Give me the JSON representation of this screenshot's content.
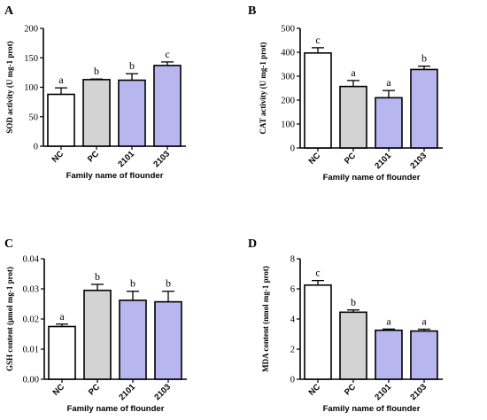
{
  "colors": {
    "NC": "#ffffff",
    "PC": "#d3d3d3",
    "2101": "#b8b6ee",
    "2103": "#b8b6ee",
    "axis": "#000000"
  },
  "chart_data": [
    {
      "panel": "A",
      "type": "bar",
      "categories": [
        "NC",
        "PC",
        "2101",
        "2103"
      ],
      "values": [
        88,
        113,
        112,
        137
      ],
      "errors": [
        11,
        1,
        11,
        6
      ],
      "sig_labels": [
        "a",
        "b",
        "b",
        "c"
      ],
      "ylabel": "SOD activity (U mg-1 prot)",
      "xlabel": "Family name of flounder",
      "ylim": [
        0,
        200
      ],
      "yticks": [
        "0",
        "50",
        "100",
        "150",
        "200"
      ]
    },
    {
      "panel": "B",
      "type": "bar",
      "categories": [
        "NC",
        "PC",
        "2101",
        "2103"
      ],
      "values": [
        397,
        257,
        210,
        328
      ],
      "errors": [
        22,
        25,
        30,
        14
      ],
      "sig_labels": [
        "c",
        "a",
        "a",
        "b"
      ],
      "ylabel": "CAT activity (U mg-1 prot)",
      "xlabel": "Family name of flounder",
      "ylim": [
        0,
        500
      ],
      "yticks": [
        "0",
        "100",
        "200",
        "300",
        "400",
        "500"
      ]
    },
    {
      "panel": "C",
      "type": "bar",
      "categories": [
        "NC",
        "PC",
        "2101",
        "2103"
      ],
      "values": [
        0.0175,
        0.0295,
        0.0262,
        0.0257
      ],
      "errors": [
        0.0008,
        0.002,
        0.003,
        0.0035
      ],
      "sig_labels": [
        "a",
        "b",
        "b",
        "b"
      ],
      "ylabel": "GSH content (μmol mg-1 prot)",
      "xlabel": "Family name of flounder",
      "ylim": [
        0,
        0.04
      ],
      "yticks": [
        "0.00",
        "0.01",
        "0.02",
        "0.03",
        "0.04"
      ]
    },
    {
      "panel": "D",
      "type": "bar",
      "categories": [
        "NC",
        "PC",
        "2101",
        "2103"
      ],
      "values": [
        6.25,
        4.45,
        3.25,
        3.2
      ],
      "errors": [
        0.3,
        0.15,
        0.08,
        0.12
      ],
      "sig_labels": [
        "c",
        "b",
        "a",
        "a"
      ],
      "ylabel": "MDA content (nmol mg-1 prot)",
      "xlabel": "Family name of flounder",
      "ylim": [
        0,
        8
      ],
      "yticks": [
        "0",
        "2",
        "4",
        "6",
        "8"
      ]
    }
  ]
}
